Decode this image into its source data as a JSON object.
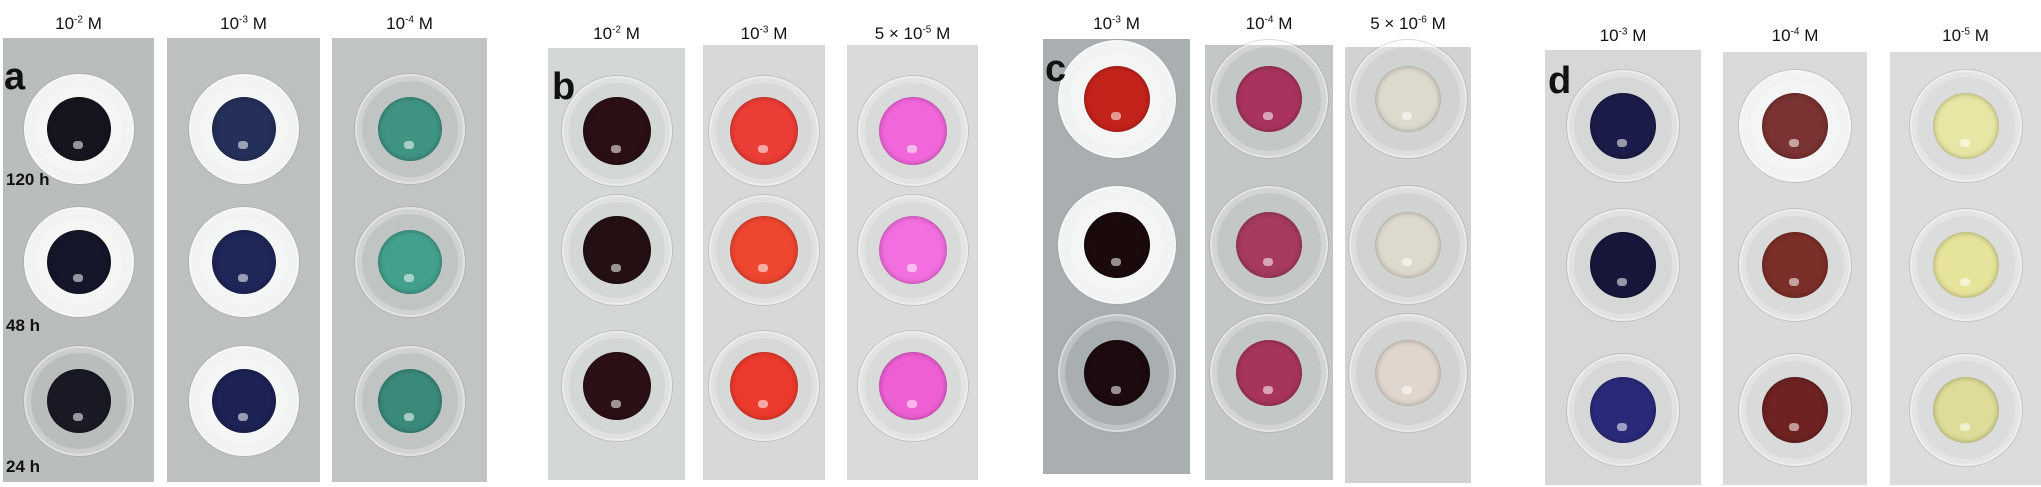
{
  "panels": [
    {
      "letter": "a",
      "columns": [
        {
          "prefix": "",
          "base": "10",
          "exp": "-2",
          "unit": "M",
          "wells": [
            "#15151f",
            "#16162a",
            "#1a1a26"
          ]
        },
        {
          "prefix": "",
          "base": "10",
          "exp": "-3",
          "unit": "M",
          "wells": [
            "#24305a",
            "#1f2658",
            "#1c2253"
          ]
        },
        {
          "prefix": "",
          "base": "10",
          "exp": "-4",
          "unit": "M",
          "wells": [
            "#3f9484",
            "#43a08c",
            "#3a8a7c"
          ]
        }
      ]
    },
    {
      "letter": "b",
      "columns": [
        {
          "prefix": "",
          "base": "10",
          "exp": "-2",
          "unit": "M",
          "wells": [
            "#2a1014",
            "#241012",
            "#2b1115"
          ]
        },
        {
          "prefix": "",
          "base": "10",
          "exp": "-3",
          "unit": "M",
          "wells": [
            "#ec3d36",
            "#ef4630",
            "#ec3a2c"
          ]
        },
        {
          "prefix": "5 ×",
          "base": "10",
          "exp": "-5",
          "unit": "M",
          "wells": [
            "#f266dc",
            "#f36ee0",
            "#ee5fd4"
          ]
        }
      ]
    },
    {
      "letter": "c",
      "columns": [
        {
          "prefix": "",
          "base": "10",
          "exp": "-3",
          "unit": "M",
          "wells": [
            "#c4231c",
            "#1a0a0c",
            "#1c0a0e"
          ]
        },
        {
          "prefix": "",
          "base": "10",
          "exp": "-4",
          "unit": "M",
          "wells": [
            "#a9335e",
            "#a63a60",
            "#a7345c"
          ]
        },
        {
          "prefix": "5 ×",
          "base": "10",
          "exp": "-6",
          "unit": "M",
          "wells": [
            "#dcdacd",
            "#dddacd",
            "#e0d6cd"
          ]
        }
      ]
    },
    {
      "letter": "d",
      "columns": [
        {
          "prefix": "",
          "base": "10",
          "exp": "-3",
          "unit": "M",
          "wells": [
            "#1c1c4a",
            "#17173c",
            "#2a2a7a"
          ]
        },
        {
          "prefix": "",
          "base": "10",
          "exp": "-4",
          "unit": "M",
          "wells": [
            "#7a3232",
            "#7c2e28",
            "#6e2222"
          ]
        },
        {
          "prefix": "",
          "base": "10",
          "exp": "-5",
          "unit": "M",
          "wells": [
            "#e8e6a4",
            "#e6e39a",
            "#dedc98"
          ]
        }
      ]
    }
  ],
  "time_labels": [
    "120 h",
    "48 h",
    "24 h"
  ]
}
